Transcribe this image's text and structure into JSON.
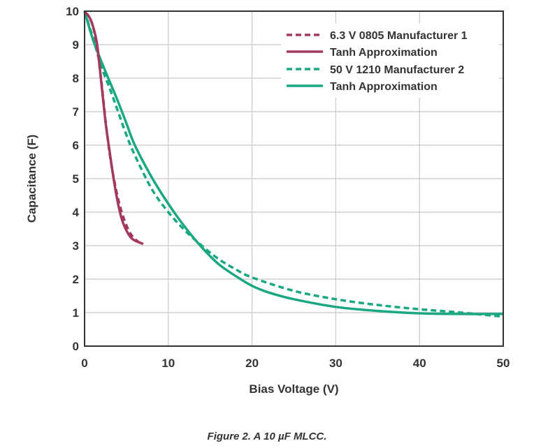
{
  "caption": "Figure 2. A 10 µF MLCC.",
  "chart_data": {
    "type": "line",
    "xlabel": "Bias Voltage (V)",
    "ylabel": "Capacitance (F)",
    "xlim": [
      0,
      50
    ],
    "ylim": [
      0,
      10
    ],
    "xticks": [
      "0",
      "10",
      "20",
      "30",
      "40",
      "50"
    ],
    "yticks": [
      "0",
      "1",
      "2",
      "3",
      "4",
      "5",
      "6",
      "7",
      "8",
      "9",
      "10"
    ],
    "grid": true,
    "legend_position": "top-right",
    "series": [
      {
        "name": "6.3 V 0805 Manufacturer 1",
        "color": "#a33a5e",
        "style": "dashed",
        "x": [
          0,
          0.5,
          1,
          1.5,
          2,
          2.5,
          3,
          3.5,
          4,
          4.5,
          5,
          5.5,
          6,
          6.5,
          7
        ],
        "y": [
          9.97,
          9.85,
          9.55,
          8.9,
          7.9,
          6.75,
          5.75,
          5.0,
          4.4,
          3.95,
          3.6,
          3.35,
          3.2,
          3.1,
          3.05
        ]
      },
      {
        "name": "Tanh Approximation",
        "color": "#a33a5e",
        "style": "solid",
        "x": [
          0,
          0.5,
          1,
          1.5,
          2,
          2.5,
          3,
          3.5,
          4,
          4.5,
          5,
          5.5,
          6,
          6.5,
          7
        ],
        "y": [
          9.97,
          9.85,
          9.55,
          9.0,
          7.85,
          6.7,
          5.8,
          4.95,
          4.25,
          3.75,
          3.45,
          3.25,
          3.15,
          3.1,
          3.05
        ]
      },
      {
        "name": "50 V 1210 Manufacturer 2",
        "color": "#1aa882",
        "style": "dashed",
        "x": [
          0,
          1,
          2,
          3,
          4,
          5,
          6,
          8,
          10,
          12,
          14,
          16,
          18,
          20,
          25,
          30,
          35,
          40,
          45,
          50
        ],
        "y": [
          10,
          9.2,
          8.35,
          7.7,
          7.0,
          6.3,
          5.7,
          4.7,
          4.0,
          3.45,
          3.0,
          2.6,
          2.3,
          2.05,
          1.65,
          1.4,
          1.23,
          1.1,
          1.0,
          0.88
        ]
      },
      {
        "name": "Tanh Approximation",
        "color": "#1aa882",
        "style": "solid",
        "x": [
          0,
          1,
          2,
          3,
          4,
          5,
          6,
          8,
          10,
          12,
          14,
          16,
          18,
          20,
          22,
          25,
          30,
          35,
          40,
          45,
          50
        ],
        "y": [
          10,
          9.15,
          8.5,
          7.9,
          7.3,
          6.65,
          6.0,
          5.05,
          4.25,
          3.55,
          2.95,
          2.45,
          2.1,
          1.8,
          1.6,
          1.4,
          1.17,
          1.05,
          0.98,
          0.96,
          0.96
        ]
      }
    ]
  }
}
